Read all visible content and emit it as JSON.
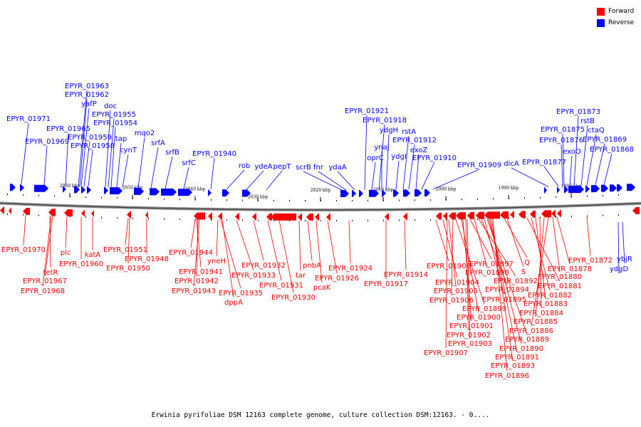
{
  "legend": {
    "forward_label": "Forward",
    "reverse_label": "Reverse",
    "forward_color": "#ff0000",
    "reverse_color": "#0000ff"
  },
  "caption": "Erwinia pyrifoliae DSM 12163 complete genome, culture collection DSM:12163. - 0....",
  "ticks": [
    "2060 kbp",
    "2050 kbp",
    "2040 kbp",
    "2030 kbp",
    "2020 kbp",
    "2010 kbp",
    "2000 kbp",
    "1990 kbp",
    "1980 kbp"
  ],
  "reverse_labels": [
    "EPYR_01971",
    "EPYR_01969",
    "EPYR_01965",
    "EPYR_01963",
    "EPYR_01962",
    "yafP",
    "EPYR_01959",
    "EPYR_01958",
    "doc",
    "EPYR_01955",
    "EPYR_01954",
    "tap",
    "cynT",
    "mqo2",
    "srfA",
    "srfB",
    "srfC",
    "EPYR_01940",
    "rob",
    "ydeA",
    "pepT",
    "scrB",
    "fnr",
    "ydaA",
    "EPYR_01921",
    "oprC",
    "EPYR_01918",
    "ynaJ",
    "ydgH",
    "ydgI",
    "rstA",
    "EPYR_01912",
    "exoZ",
    "EPYR_01910",
    "EPYR_01909",
    "dicA",
    "EPYR_01877",
    "EPYR_01876",
    "EPYR_01875",
    "exoO",
    "EPYR_01873",
    "rstB",
    "ctaQ",
    "EPYR_01869",
    "EPYR_01868",
    "ybjR",
    "ydgD"
  ],
  "forward_labels": [
    "EPYR_01970",
    "tetR",
    "EPYR_01967",
    "EPYR_01968",
    "plc",
    "EPYR_01960",
    "katA",
    "EPYR_01951",
    "EPYR_01950",
    "EPYR_01948",
    "EPYR_01944",
    "EPYR_01941",
    "EPYR_01942",
    "EPYR_01943",
    "yneH",
    "EPYR_01935",
    "dppA",
    "EPYR_01933",
    "EPYR_01932",
    "EPYR_01931",
    "EPYR_01930",
    "tar",
    "pnbA",
    "pcaK",
    "EPYR_01926",
    "EPYR_01924",
    "EPYR_01917",
    "EPYR_01914",
    "EPYR_01908",
    "EPYR_01904",
    "EPYR_01905",
    "EPYR_01906",
    "EPYR_01899",
    "EPYR_01900",
    "EPYR_01901",
    "EPYR_01902",
    "EPYR_01903",
    "EPYR_01907",
    "EPYR_01897",
    "EPYR_01898",
    "EPYR_01892",
    "EPYR_01894",
    "EPYR_01895",
    "EPYR_01889",
    "EPYR_01890",
    "EPYR_01891",
    "EPYR_01893",
    "EPYR_01896",
    "Q",
    "S",
    "EPYR_01881",
    "EPYR_01882",
    "EPYR_01883",
    "EPYR_01884",
    "EPYR_01885",
    "EPYR_01886",
    "EPYR_01880",
    "EPYR_01878",
    "EPYR_01872"
  ]
}
